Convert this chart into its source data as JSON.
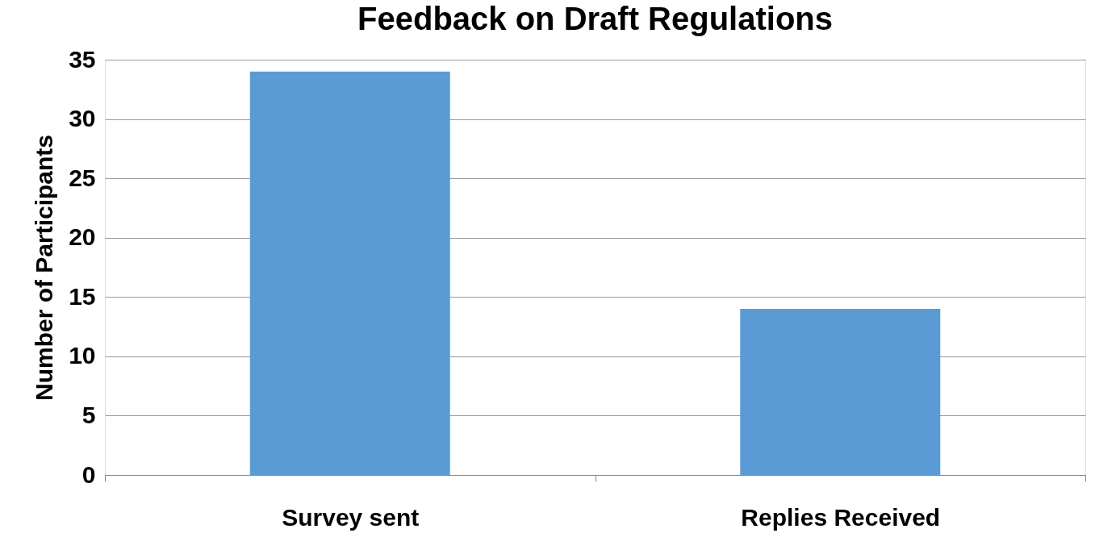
{
  "chart_data": {
    "type": "bar",
    "title": "Feedback on Draft Regulations",
    "ylabel": "Number of Participants",
    "categories": [
      "Survey sent",
      "Replies Received"
    ],
    "values": [
      34,
      14
    ],
    "color": "#5b9bd5",
    "ylim": [
      0,
      35
    ],
    "yticks": [
      0,
      5,
      10,
      15,
      20,
      25,
      30,
      35
    ],
    "grid": "y"
  }
}
